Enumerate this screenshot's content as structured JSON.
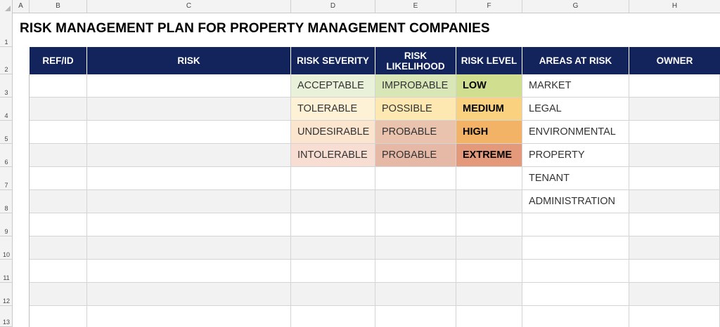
{
  "columns": [
    "A",
    "B",
    "C",
    "D",
    "E",
    "F",
    "G",
    "H"
  ],
  "rows": [
    "1",
    "2",
    "3",
    "4",
    "5",
    "6",
    "7",
    "8",
    "9",
    "10",
    "11",
    "12",
    "13"
  ],
  "title": "RISK MANAGEMENT PLAN FOR PROPERTY MANAGEMENT COMPANIES",
  "headers": {
    "ref": "REF/ID",
    "risk": "RISK",
    "severity": "RISK SEVERITY",
    "likelihood_1": "RISK",
    "likelihood_2": "LIKELIHOOD",
    "level": "RISK LEVEL",
    "areas": "AREAS AT RISK",
    "owner": "OWNER"
  },
  "table": [
    {
      "severity": "ACCEPTABLE",
      "likelihood": "IMPROBABLE",
      "level": "LOW",
      "area": "MARKET"
    },
    {
      "severity": "TOLERABLE",
      "likelihood": "POSSIBLE",
      "level": "MEDIUM",
      "area": "LEGAL"
    },
    {
      "severity": "UNDESIRABLE",
      "likelihood": "PROBABLE",
      "level": "HIGH",
      "area": "ENVIRONMENTAL"
    },
    {
      "severity": "INTOLERABLE",
      "likelihood": "PROBABLE",
      "level": "EXTREME",
      "area": "PROPERTY"
    },
    {
      "severity": "",
      "likelihood": "",
      "level": "",
      "area": "TENANT"
    },
    {
      "severity": "",
      "likelihood": "",
      "level": "",
      "area": "ADMINISTRATION"
    },
    {
      "severity": "",
      "likelihood": "",
      "level": "",
      "area": ""
    },
    {
      "severity": "",
      "likelihood": "",
      "level": "",
      "area": ""
    },
    {
      "severity": "",
      "likelihood": "",
      "level": "",
      "area": ""
    },
    {
      "severity": "",
      "likelihood": "",
      "level": "",
      "area": ""
    },
    {
      "severity": "",
      "likelihood": "",
      "level": "",
      "area": ""
    }
  ],
  "colors": {
    "header_bg": "#13235b",
    "row_alt": "#f2f2f2",
    "severity": [
      "#eaf1da",
      "#fdf1d6",
      "#fbe5cf",
      "#f8ddd3"
    ],
    "likelihood": [
      "#d8e6b8",
      "#fde8b2",
      "#e9c3ad",
      "#e6b9a7"
    ],
    "level": [
      "#cfdf8f",
      "#fad27f",
      "#f3b366",
      "#e49a7a"
    ]
  }
}
